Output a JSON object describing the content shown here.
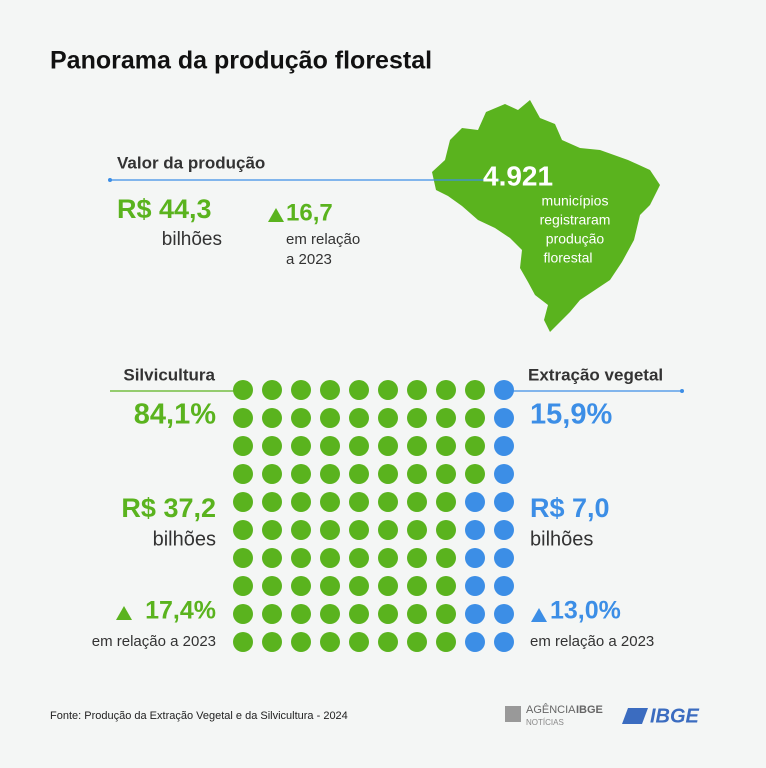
{
  "header": {
    "title": "Panorama da produção florestal"
  },
  "valor": {
    "label": "Valor da produção",
    "value": "R$ 44,3",
    "unit": "bilhões",
    "change": "16,7",
    "change_note": [
      "em relação",
      "a 2023"
    ],
    "color": "#5ab31e"
  },
  "map": {
    "number": "4.921",
    "text": [
      "municípios",
      "registraram",
      "produção",
      "florestal"
    ],
    "color": "#5ab31e"
  },
  "silvicultura": {
    "label": "Silvicultura",
    "share": "84,1%",
    "value": "R$ 37,2",
    "unit": "bilhões",
    "change": "17,4%",
    "change_note": "em relação a 2023",
    "color": "#5ab31e"
  },
  "extracao": {
    "label": "Extração vegetal",
    "share": "15,9%",
    "value": "R$ 7,0",
    "unit": "bilhões",
    "change": "13,0%",
    "change_note": "em relação a 2023",
    "color": "#3c8ee6"
  },
  "waffle": {
    "silvicultura_dots": 84,
    "extracao_dots": 16
  },
  "footer": {
    "source": "Fonte: Produção da Extração Vegetal e da Silvicultura - 2024",
    "logo_agencia": "AGÊNCIA",
    "logo_agencia_bold": "IBGE",
    "logo_noticias": "NOTÍCIAS",
    "logo_ibge": "IBGE"
  }
}
